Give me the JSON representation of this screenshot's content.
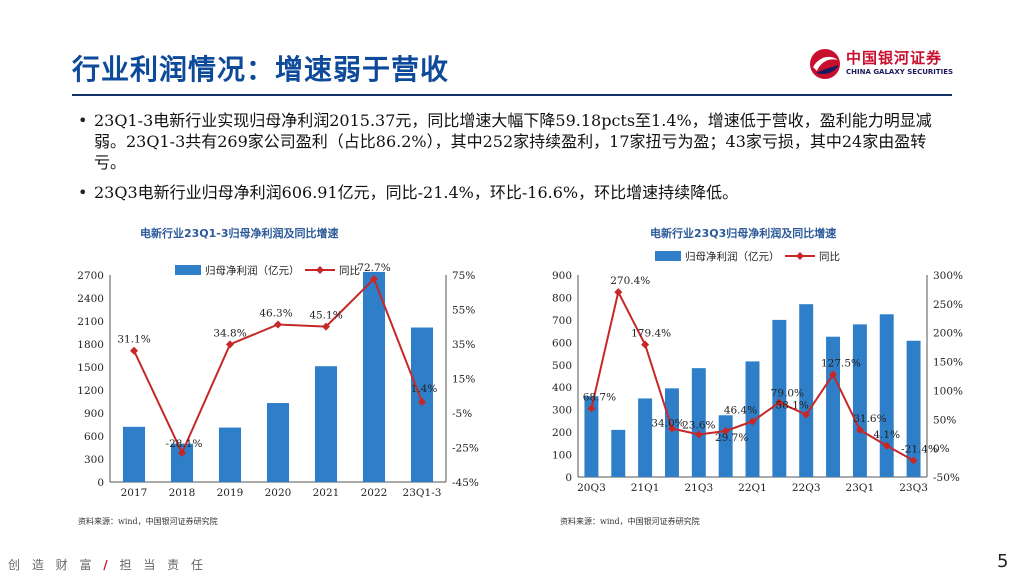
{
  "page": {
    "title": "行业利润情况：增速弱于营收",
    "page_number": "5",
    "footer": {
      "left": "创 造 财 富",
      "slash": "/",
      "right": "担 当 责 任"
    }
  },
  "brand": {
    "name_cn": "中国银河证券",
    "name_en": "CHINA GALAXY SECURITIES",
    "logo_icon": "galaxy-logo-icon",
    "colors": {
      "red": "#c8102e",
      "navy": "#14346e"
    }
  },
  "bullets": [
    "23Q1-3电新行业实现归母净利润2015.37元，同比增速大幅下降59.18pcts至1.4%，增速低于营收，盈利能力明显减弱。23Q1-3共有269家公司盈利（占比86.2%），其中252家持续盈利，17家扭亏为盈；43家亏损，其中24家由盈转亏。",
    "23Q3电新行业归母净利润606.91亿元，同比-21.4%，环比-16.6%，环比增速持续降低。"
  ],
  "colors": {
    "bar": "#2f7fc8",
    "line": "#c62828",
    "title": "#0e4a9a"
  },
  "chart_data": [
    {
      "type": "bar",
      "title": "电新行业23Q1-3归母净利润及同比增速",
      "source": "资料来源：wind，中国银河证券研究院",
      "categories": [
        "2017",
        "2018",
        "2019",
        "2020",
        "2021",
        "2022",
        "23Q1-3"
      ],
      "legend": [
        "归母净利润（亿元）",
        "同比"
      ],
      "series": [
        {
          "name": "归母净利润（亿元）",
          "type": "bar",
          "axis": "left",
          "values": [
            720,
            500,
            710,
            1030,
            1510,
            2740,
            2015
          ]
        },
        {
          "name": "同比",
          "type": "line",
          "axis": "right",
          "values": [
            31.1,
            -28.1,
            34.8,
            46.3,
            45.1,
            72.7,
            1.4
          ],
          "labels": [
            "31.1%",
            "-28.1%",
            "34.8%",
            "46.3%",
            "45.1%",
            "72.7%",
            "1.4%"
          ]
        }
      ],
      "y_left": {
        "min": 0,
        "max": 2700,
        "ticks": [
          "0",
          "300",
          "600",
          "900",
          "1200",
          "1500",
          "1800",
          "2100",
          "2400",
          "2700"
        ]
      },
      "y_right": {
        "min": -45,
        "max": 75,
        "ticks": [
          "-45%",
          "-25%",
          "-5%",
          "15%",
          "35%",
          "55%",
          "75%"
        ]
      }
    },
    {
      "type": "bar",
      "title": "电新行业23Q3归母净利润及同比增速",
      "source": "资料来源：wind，中国银河证券研究院",
      "categories": [
        "20Q3",
        "20Q4",
        "21Q1",
        "21Q2",
        "21Q3",
        "21Q4",
        "22Q1",
        "22Q2",
        "22Q3",
        "22Q4",
        "23Q1",
        "23Q2",
        "23Q3"
      ],
      "x_tick_labels": [
        "20Q3",
        "",
        "21Q1",
        "",
        "21Q3",
        "",
        "22Q1",
        "",
        "22Q3",
        "",
        "23Q1",
        "",
        "23Q3"
      ],
      "legend": [
        "归母净利润（亿元）",
        "同比"
      ],
      "series": [
        {
          "name": "归母净利润（亿元）",
          "type": "bar",
          "axis": "left",
          "values": [
            360,
            210,
            350,
            395,
            485,
            275,
            515,
            700,
            770,
            625,
            680,
            725,
            607
          ]
        },
        {
          "name": "同比",
          "type": "line",
          "axis": "right",
          "values": [
            68.7,
            270.4,
            179.4,
            34.0,
            23.6,
            29.7,
            46.4,
            79.0,
            58.1,
            127.5,
            31.6,
            4.1,
            -21.4
          ],
          "labels": [
            "68.7%",
            "270.4%",
            "179.4%",
            "34.0%",
            "23.6%",
            "29.7%",
            "46.4%",
            "79.0%",
            "58.1%",
            "127.5%",
            "31.6%",
            "4.1%",
            "-21.4%"
          ]
        }
      ],
      "y_left": {
        "min": 0,
        "max": 900,
        "ticks": [
          "0",
          "100",
          "200",
          "300",
          "400",
          "500",
          "600",
          "700",
          "800",
          "900"
        ]
      },
      "y_right": {
        "min": -50,
        "max": 300,
        "ticks": [
          "-50%",
          "0%",
          "50%",
          "100%",
          "150%",
          "200%",
          "250%",
          "300%"
        ]
      }
    }
  ]
}
